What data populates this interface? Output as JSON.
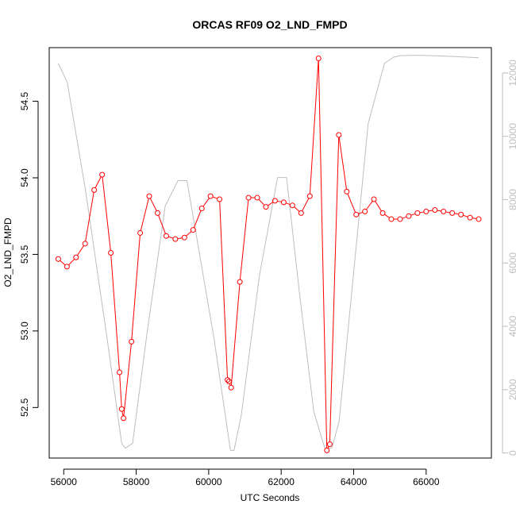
{
  "chart_data": {
    "type": "line",
    "title": "ORCAS RF09 O2_LND_FMPD",
    "xlabel": "UTC Seconds",
    "ylabel": "O2_LND_FMPD",
    "xlim": [
      55600,
      67800
    ],
    "ylim": [
      52.17,
      54.85
    ],
    "y2lim": [
      -160,
      12800
    ],
    "x_ticks": [
      56000,
      58000,
      60000,
      62000,
      64000,
      66000
    ],
    "x_tick_labels": [
      "56000",
      "58000",
      "60000",
      "62000",
      "64000",
      "66000"
    ],
    "y_ticks": [
      52.5,
      53.0,
      53.5,
      54.0,
      54.5
    ],
    "y_tick_labels": [
      "52.5",
      "53.0",
      "53.5",
      "54.0",
      "54.5"
    ],
    "y2_ticks": [
      0,
      2000,
      4000,
      6000,
      8000,
      10000,
      12000
    ],
    "y2_tick_labels": [
      "0",
      "2000",
      "4000",
      "6000",
      "8000",
      "10000",
      "12000"
    ],
    "colors": {
      "primary": "#ff0000",
      "secondary": "#bebebe"
    },
    "series": [
      {
        "axis": "left",
        "style": "line+points",
        "x": [
          55850,
          56090,
          56340,
          56590,
          56840,
          57060,
          57300,
          57540,
          57600,
          57650,
          57870,
          58110,
          58360,
          58590,
          58830,
          59080,
          59330,
          59570,
          59810,
          60050,
          60300,
          60520,
          60560,
          60620,
          60860,
          61100,
          61340,
          61580,
          61830,
          62070,
          62310,
          62550,
          62790,
          63030,
          63260,
          63340,
          63590,
          63810,
          64070,
          64310,
          64560,
          64800,
          65040,
          65280,
          65520,
          65760,
          66000,
          66240,
          66480,
          66720,
          66960,
          67210,
          67450
        ],
        "y": [
          53.47,
          53.42,
          53.48,
          53.57,
          53.92,
          54.02,
          53.51,
          52.73,
          52.49,
          52.43,
          52.93,
          53.64,
          53.88,
          53.77,
          53.62,
          53.6,
          53.61,
          53.66,
          53.8,
          53.88,
          53.86,
          52.68,
          52.67,
          52.63,
          53.32,
          53.87,
          53.87,
          53.81,
          53.85,
          53.84,
          53.82,
          53.77,
          53.88,
          54.78,
          52.22,
          52.26,
          54.28,
          53.91,
          53.76,
          53.78,
          53.86,
          53.77,
          53.73,
          53.73,
          53.75,
          53.77,
          53.78,
          53.79,
          53.78,
          53.77,
          53.76,
          53.74,
          53.73
        ]
      },
      {
        "axis": "right",
        "style": "line",
        "x": [
          55850,
          56100,
          56600,
          57200,
          57600,
          57700,
          57900,
          58300,
          58800,
          59150,
          59400,
          59700,
          60150,
          60600,
          60700,
          60900,
          61400,
          61900,
          62150,
          62500,
          62900,
          63200,
          63300,
          63400,
          63600,
          64000,
          64400,
          64850,
          65100,
          65300,
          65800,
          66300,
          66800,
          67450
        ],
        "y": [
          12300,
          11700,
          8300,
          3600,
          300,
          150,
          300,
          3800,
          7800,
          8600,
          8600,
          6600,
          3600,
          80,
          80,
          1200,
          5600,
          8700,
          8700,
          5100,
          1300,
          160,
          150,
          160,
          1000,
          5700,
          10400,
          12300,
          12500,
          12550,
          12560,
          12540,
          12520,
          12480
        ]
      }
    ]
  }
}
